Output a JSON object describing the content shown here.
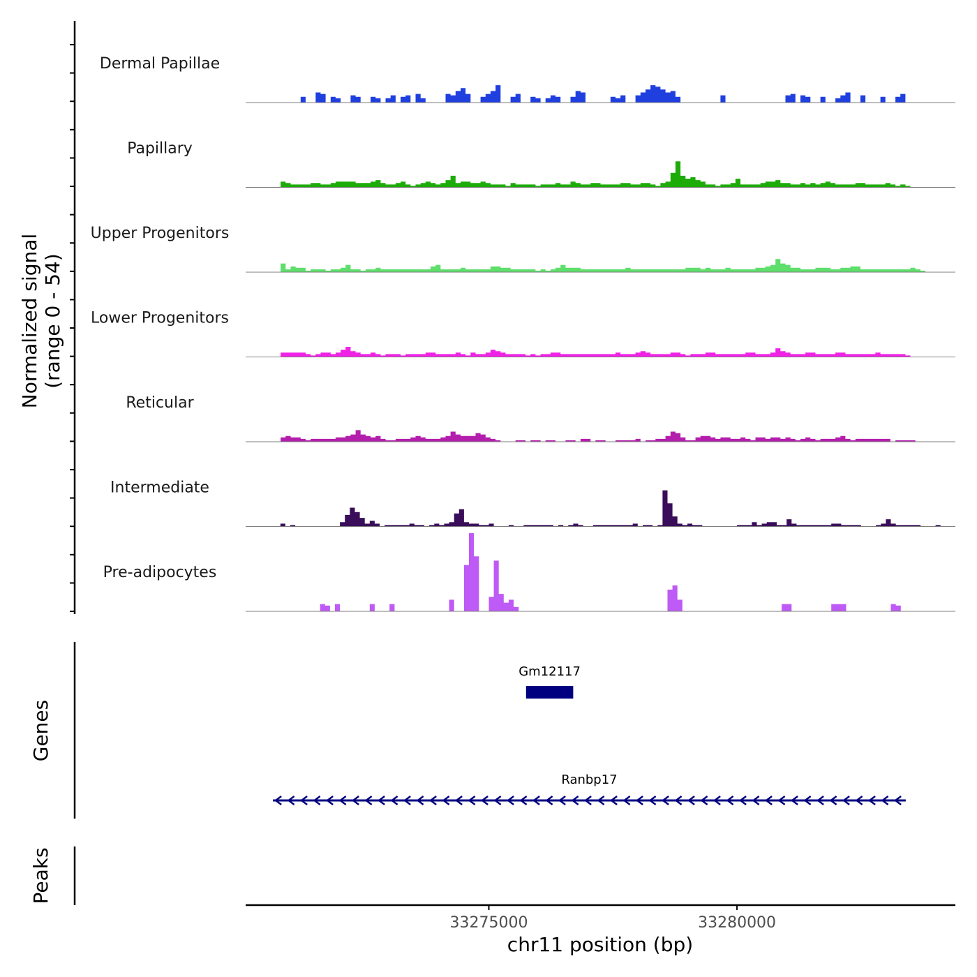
{
  "chart_data": {
    "type": "area",
    "chromosome": "chr11",
    "xlim": [
      33270100,
      33284400
    ],
    "xlabel": "chr11 position (bp)",
    "x_ticks": [
      33275000,
      33280000
    ],
    "x_tick_labels": [
      "33275000",
      "33280000"
    ],
    "ylabel_line1": "Normalized signal",
    "ylabel_line2": "(range 0 - 54)",
    "ylim": [
      0,
      54
    ],
    "series": [
      {
        "name": "Dermal Papillae",
        "color": "#1f3fdf",
        "values": [
          0,
          0,
          0,
          0,
          0,
          0,
          0,
          0,
          0,
          0,
          0,
          4,
          0,
          0,
          7,
          6,
          0,
          4,
          3,
          0,
          0,
          5,
          4,
          0,
          0,
          4,
          3,
          0,
          3,
          5,
          0,
          4,
          5,
          0,
          6,
          3,
          0,
          0,
          0,
          0,
          6,
          5,
          8,
          10,
          6,
          0,
          0,
          4,
          6,
          8,
          12,
          0,
          0,
          4,
          6,
          0,
          0,
          4,
          3,
          0,
          3,
          5,
          4,
          0,
          0,
          4,
          8,
          7,
          0,
          0,
          0,
          0,
          0,
          4,
          3,
          5,
          0,
          0,
          5,
          7,
          9,
          12,
          11,
          9,
          7,
          8,
          4,
          0,
          0,
          0,
          0,
          0,
          0,
          0,
          0,
          5,
          0,
          0,
          0,
          0,
          0,
          0,
          0,
          0,
          0,
          0,
          0,
          0,
          5,
          6,
          0,
          5,
          4,
          0,
          0,
          4,
          0,
          0,
          3,
          5,
          7,
          0,
          0,
          5,
          0,
          0,
          0,
          4,
          0,
          0,
          4,
          6,
          0,
          0,
          0,
          0,
          0,
          0,
          0,
          0,
          0,
          0
        ]
      },
      {
        "name": "Papillary",
        "color": "#1cab08",
        "values": [
          0,
          0,
          0,
          0,
          0,
          0,
          0,
          4,
          3,
          2,
          2,
          2,
          2,
          3,
          3,
          2,
          2,
          3,
          4,
          4,
          4,
          4,
          3,
          3,
          3,
          4,
          5,
          3,
          2,
          2,
          3,
          4,
          2,
          1,
          2,
          3,
          4,
          3,
          2,
          3,
          5,
          8,
          3,
          4,
          4,
          3,
          3,
          4,
          3,
          2,
          2,
          2,
          1,
          3,
          2,
          2,
          2,
          2,
          1,
          2,
          2,
          2,
          3,
          2,
          2,
          4,
          3,
          2,
          2,
          3,
          3,
          2,
          2,
          2,
          2,
          3,
          3,
          2,
          2,
          3,
          3,
          2,
          1,
          3,
          4,
          10,
          18,
          8,
          6,
          7,
          5,
          4,
          2,
          2,
          1,
          2,
          2,
          3,
          6,
          2,
          2,
          2,
          2,
          3,
          4,
          4,
          5,
          3,
          3,
          2,
          2,
          3,
          2,
          3,
          2,
          3,
          4,
          3,
          2,
          2,
          2,
          2,
          3,
          3,
          2,
          2,
          2,
          2,
          3,
          2,
          1,
          2,
          1,
          0,
          0,
          0,
          0,
          0,
          0,
          0,
          0,
          0
        ]
      },
      {
        "name": "Upper Progenitors",
        "color": "#5ede6a",
        "values": [
          0,
          0,
          0,
          0,
          0,
          0,
          0,
          6,
          2,
          4,
          3,
          3,
          1,
          2,
          2,
          2,
          1,
          2,
          2,
          3,
          5,
          2,
          2,
          1,
          2,
          2,
          3,
          2,
          2,
          2,
          2,
          2,
          2,
          2,
          2,
          2,
          2,
          4,
          5,
          2,
          2,
          2,
          2,
          3,
          2,
          2,
          2,
          2,
          2,
          4,
          4,
          3,
          3,
          2,
          2,
          2,
          2,
          2,
          1,
          2,
          1,
          2,
          3,
          5,
          3,
          3,
          3,
          2,
          2,
          2,
          2,
          2,
          2,
          2,
          2,
          2,
          3,
          2,
          2,
          2,
          2,
          2,
          2,
          2,
          2,
          2,
          2,
          2,
          3,
          3,
          3,
          2,
          3,
          2,
          2,
          2,
          3,
          2,
          2,
          2,
          2,
          2,
          3,
          3,
          4,
          5,
          9,
          6,
          5,
          3,
          3,
          2,
          2,
          2,
          3,
          3,
          3,
          2,
          2,
          3,
          3,
          4,
          4,
          2,
          2,
          2,
          2,
          2,
          2,
          2,
          2,
          2,
          2,
          3,
          2,
          1,
          0,
          0,
          0,
          0,
          0,
          0
        ]
      },
      {
        "name": "Lower Progenitors",
        "color": "#ef22e6",
        "values": [
          0,
          0,
          0,
          0,
          0,
          0,
          0,
          3,
          3,
          3,
          3,
          3,
          2,
          1,
          2,
          3,
          3,
          2,
          3,
          5,
          7,
          4,
          3,
          2,
          2,
          3,
          2,
          1,
          2,
          2,
          2,
          1,
          2,
          2,
          2,
          2,
          3,
          3,
          2,
          2,
          2,
          2,
          3,
          2,
          1,
          3,
          2,
          2,
          3,
          5,
          4,
          3,
          2,
          2,
          2,
          2,
          1,
          2,
          1,
          2,
          2,
          3,
          3,
          2,
          2,
          2,
          2,
          2,
          2,
          2,
          2,
          2,
          2,
          2,
          3,
          2,
          2,
          2,
          3,
          4,
          3,
          2,
          2,
          2,
          2,
          3,
          3,
          2,
          1,
          2,
          2,
          2,
          3,
          3,
          2,
          2,
          2,
          2,
          2,
          2,
          3,
          3,
          2,
          2,
          2,
          3,
          6,
          4,
          3,
          2,
          2,
          2,
          3,
          3,
          2,
          2,
          2,
          2,
          3,
          3,
          2,
          2,
          2,
          2,
          2,
          2,
          3,
          2,
          2,
          2,
          2,
          2,
          1,
          0,
          0,
          0,
          0,
          0,
          0,
          0,
          0,
          0
        ]
      },
      {
        "name": "Reticular",
        "color": "#b41eac",
        "values": [
          0,
          0,
          0,
          0,
          0,
          0,
          0,
          3,
          4,
          3,
          3,
          2,
          1,
          2,
          2,
          2,
          2,
          2,
          3,
          3,
          4,
          5,
          8,
          5,
          4,
          3,
          4,
          2,
          1,
          1,
          2,
          2,
          2,
          3,
          4,
          3,
          2,
          2,
          2,
          3,
          4,
          7,
          5,
          4,
          4,
          4,
          6,
          5,
          3,
          2,
          1,
          0,
          0,
          0,
          1,
          1,
          0,
          1,
          1,
          0,
          1,
          1,
          0,
          0,
          1,
          1,
          0,
          2,
          2,
          0,
          1,
          1,
          0,
          0,
          1,
          1,
          1,
          1,
          2,
          0,
          1,
          1,
          2,
          2,
          4,
          7,
          6,
          3,
          1,
          1,
          3,
          4,
          4,
          3,
          2,
          3,
          3,
          2,
          2,
          3,
          2,
          1,
          3,
          3,
          2,
          3,
          3,
          2,
          3,
          2,
          1,
          2,
          3,
          2,
          1,
          2,
          2,
          2,
          3,
          4,
          2,
          1,
          2,
          2,
          2,
          2,
          2,
          2,
          2,
          0,
          1,
          1,
          1,
          1,
          0,
          0,
          0,
          0,
          0,
          0,
          0,
          0
        ]
      },
      {
        "name": "Intermediate",
        "color": "#3a0d5a",
        "values": [
          0,
          0,
          0,
          0,
          0,
          0,
          0,
          2,
          0,
          1,
          0,
          0,
          0,
          0,
          0,
          0,
          0,
          0,
          0,
          3,
          8,
          13,
          10,
          6,
          2,
          4,
          2,
          0,
          1,
          1,
          1,
          1,
          1,
          2,
          1,
          1,
          0,
          1,
          2,
          1,
          2,
          3,
          9,
          12,
          3,
          2,
          2,
          1,
          1,
          2,
          0,
          0,
          0,
          1,
          0,
          0,
          1,
          1,
          1,
          1,
          1,
          1,
          0,
          1,
          0,
          1,
          2,
          1,
          0,
          0,
          1,
          1,
          1,
          1,
          1,
          1,
          1,
          1,
          2,
          0,
          1,
          1,
          0,
          1,
          25,
          16,
          7,
          2,
          1,
          2,
          1,
          1,
          0,
          0,
          0,
          0,
          0,
          0,
          0,
          1,
          1,
          1,
          3,
          1,
          2,
          3,
          3,
          1,
          1,
          5,
          2,
          1,
          1,
          1,
          1,
          1,
          1,
          1,
          2,
          2,
          1,
          1,
          1,
          1,
          0,
          0,
          0,
          1,
          2,
          5,
          2,
          1,
          1,
          1,
          1,
          1,
          0,
          0,
          0,
          1,
          0,
          0,
          0
        ]
      },
      {
        "name": "Pre-adipocytes",
        "color": "#be5af5",
        "values": [
          0,
          0,
          0,
          0,
          0,
          0,
          0,
          0,
          0,
          0,
          0,
          0,
          0,
          0,
          0,
          5,
          4,
          0,
          5,
          0,
          0,
          0,
          0,
          0,
          0,
          5,
          0,
          0,
          0,
          5,
          0,
          0,
          0,
          0,
          0,
          0,
          0,
          0,
          0,
          0,
          0,
          8,
          0,
          0,
          32,
          54,
          38,
          0,
          0,
          10,
          35,
          12,
          6,
          8,
          3,
          0,
          0,
          0,
          0,
          0,
          0,
          0,
          0,
          0,
          0,
          0,
          0,
          0,
          0,
          0,
          0,
          0,
          0,
          0,
          0,
          0,
          0,
          0,
          0,
          0,
          0,
          0,
          0,
          0,
          0,
          15,
          18,
          8,
          0,
          0,
          0,
          0,
          0,
          0,
          0,
          0,
          0,
          0,
          0,
          0,
          0,
          0,
          0,
          0,
          0,
          0,
          0,
          0,
          5,
          5,
          0,
          0,
          0,
          0,
          0,
          0,
          0,
          0,
          5,
          5,
          5,
          0,
          0,
          0,
          0,
          0,
          0,
          0,
          0,
          0,
          5,
          4,
          0,
          0,
          0,
          0,
          0,
          0,
          0,
          0,
          0,
          0,
          0
        ]
      }
    ],
    "genes": [
      {
        "name": "Gm12117",
        "start": 33275750,
        "end": 33276700,
        "strand": "",
        "style": "block"
      },
      {
        "name": "Ranbp17",
        "start": 33270650,
        "end": 33283400,
        "strand": "-",
        "style": "arrow-line"
      }
    ],
    "gene_color": "#000080",
    "panels": {
      "genes": "Genes",
      "peaks": "Peaks"
    }
  }
}
